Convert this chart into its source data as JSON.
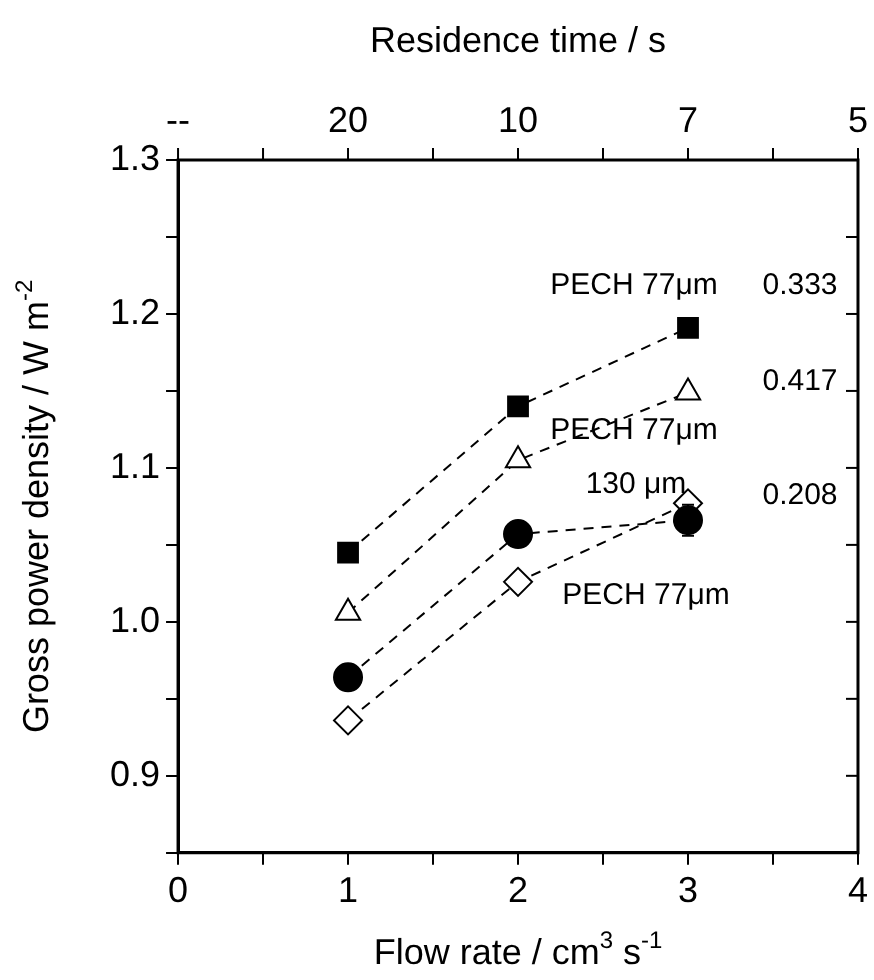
{
  "chart_data": {
    "type": "line",
    "xlabel": "Flow rate / cm$^{3}$ s$^{-1}$",
    "ylabel": "Gross power density / W m$^{-2}$",
    "x2label": "Residence time / s",
    "x": [
      1,
      2,
      3
    ],
    "xlim": [
      0,
      4
    ],
    "xticks": [
      0,
      {
        "value": 0.5,
        "label": null
      },
      1,
      {
        "value": 1.5,
        "label": null
      },
      2,
      {
        "value": 2.5,
        "label": null
      },
      3,
      {
        "value": 3.5,
        "label": null
      },
      4
    ],
    "ylim": [
      0.85,
      1.3
    ],
    "yticks": [
      {
        "value": 0.85,
        "label": null
      },
      0.9,
      {
        "value": 0.95,
        "label": null
      },
      {
        "value": 1.0,
        "label": "1.0"
      },
      {
        "value": 1.05,
        "label": null
      },
      1.1,
      {
        "value": 1.15,
        "label": null
      },
      1.2,
      {
        "value": 1.25,
        "label": null
      },
      1.3
    ],
    "grid": false,
    "legend": false,
    "line_style": "dashed",
    "series": [
      {
        "name": "PECH 77μm",
        "color": "#000000",
        "marker": "square",
        "values": [
          1.045,
          1.14,
          1.191
        ]
      },
      {
        "name": "PECH 77μm",
        "color": "#000000",
        "marker": "triangle",
        "values": [
          1.006,
          1.105,
          1.149
        ]
      },
      {
        "name": "130 μm",
        "color": "#000000",
        "marker": "circle",
        "values": [
          0.964,
          1.057,
          1.066
        ],
        "errors": [
          null,
          null,
          0.01
        ]
      },
      {
        "name": "PECH 77μm",
        "color": "#000000",
        "marker": "diamond",
        "values": [
          0.936,
          1.026,
          1.077
        ]
      }
    ],
    "annotations": [
      "0.333",
      "0.417",
      "0.208",
      "--",
      "20",
      "10",
      "7",
      "5"
    ]
  }
}
